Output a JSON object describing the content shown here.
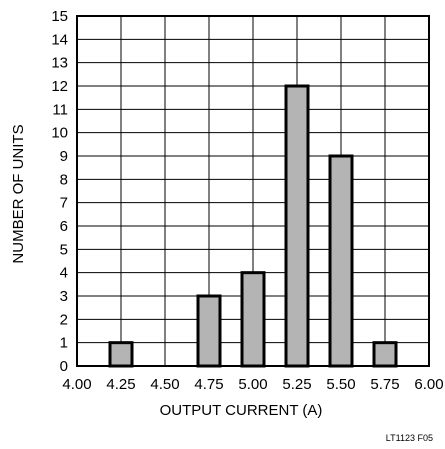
{
  "chart_data": {
    "type": "bar",
    "title": "",
    "xlabel": "OUTPUT CURRENT (A)",
    "ylabel": "NUMBER OF UNITS",
    "x_ticks": [
      "4.00",
      "4.25",
      "4.50",
      "4.75",
      "5.00",
      "5.25",
      "5.50",
      "5.75",
      "6.00"
    ],
    "xlim": [
      4.0,
      6.0
    ],
    "ylim": [
      0,
      15
    ],
    "y_ticks": [
      0,
      1,
      2,
      3,
      4,
      5,
      6,
      7,
      8,
      9,
      10,
      11,
      12,
      13,
      14,
      15
    ],
    "bars": [
      {
        "x": 4.25,
        "value": 1
      },
      {
        "x": 4.5,
        "value": 0
      },
      {
        "x": 4.75,
        "value": 3
      },
      {
        "x": 5.0,
        "value": 4
      },
      {
        "x": 5.25,
        "value": 12
      },
      {
        "x": 5.5,
        "value": 9
      },
      {
        "x": 5.75,
        "value": 1
      }
    ],
    "grid": true,
    "bar_color": "#b4b4b4",
    "edge_color": "#000000"
  },
  "footer": {
    "figure_code": "LT1123 F05"
  }
}
